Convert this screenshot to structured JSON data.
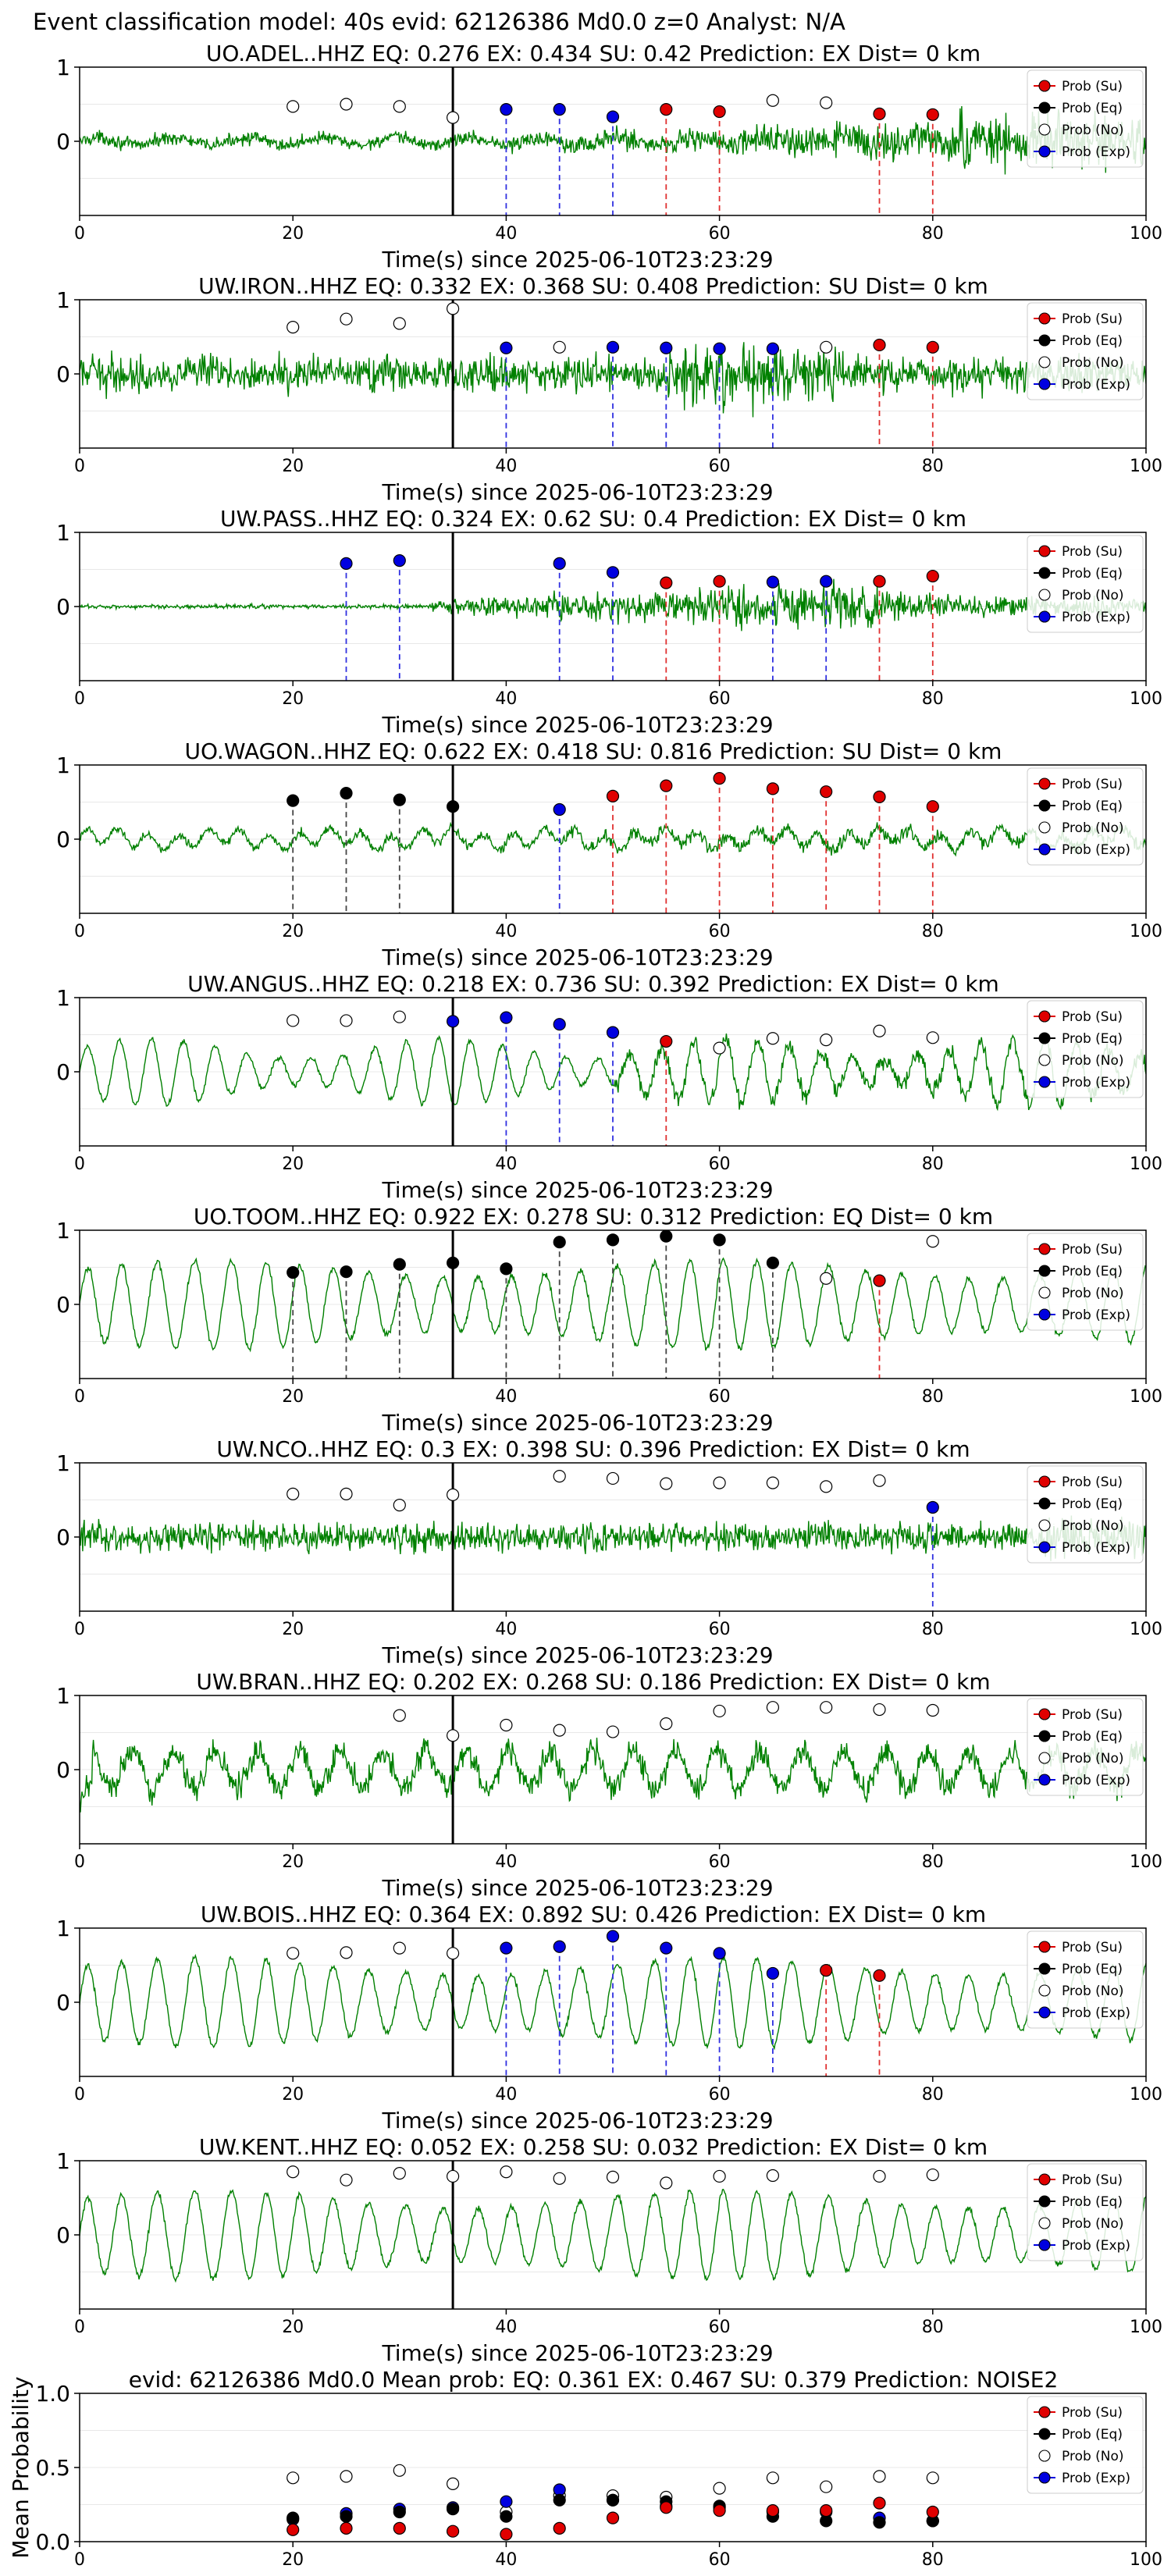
{
  "figure": {
    "suptitle": "Event classification model: 40s evid: 62126386 Md0.0 z=0 Analyst: N/A"
  },
  "legend": {
    "entries": [
      "Prob (Su)",
      "Prob (Eq)",
      "Prob (No)",
      "Prob (Exp)"
    ],
    "colors": [
      "#e00000",
      "#000000",
      "#ffffff",
      "#0000e0"
    ],
    "placement": "right"
  },
  "colors": {
    "trace": "#008000",
    "su": "#e00000",
    "eq": "#000000",
    "no": "#ffffff",
    "exp": "#0000e0",
    "su_line": "#e03030",
    "eq_line": "#444444",
    "exp_line": "#3030e0",
    "pick_line": "#000000"
  },
  "chart_data": [
    {
      "type": "line",
      "title": "UO.ADEL..HHZ   EQ: 0.276  EX: 0.434  SU: 0.42   Prediction: EX    Dist= 0 km",
      "xlabel": "Time(s) since 2025-06-10T23:23:29",
      "xlim": [
        0,
        100
      ],
      "ylim": [
        -1,
        1
      ],
      "xticks": [
        0,
        20,
        40,
        60,
        80,
        100
      ],
      "yticks": [
        1,
        0
      ],
      "pick_time": 35,
      "trace_style": "noise_growing",
      "points": [
        [
          20,
          0.47,
          "no"
        ],
        [
          25,
          0.5,
          "no"
        ],
        [
          30,
          0.47,
          "no"
        ],
        [
          35,
          0.32,
          "no"
        ],
        [
          40,
          0.43,
          "exp"
        ],
        [
          45,
          0.43,
          "exp"
        ],
        [
          50,
          0.33,
          "exp"
        ],
        [
          55,
          0.43,
          "su"
        ],
        [
          60,
          0.4,
          "su"
        ],
        [
          65,
          0.55,
          "no"
        ],
        [
          70,
          0.52,
          "no"
        ],
        [
          75,
          0.37,
          "su"
        ],
        [
          80,
          0.36,
          "su"
        ]
      ]
    },
    {
      "type": "line",
      "title": "UW.IRON..HHZ   EQ: 0.332  EX: 0.368  SU: 0.408   Prediction: SU    Dist= 0 km",
      "xlabel": "Time(s) since 2025-06-10T23:23:29",
      "xlim": [
        0,
        100
      ],
      "ylim": [
        -1,
        1
      ],
      "xticks": [
        0,
        20,
        40,
        60,
        80,
        100
      ],
      "yticks": [
        1,
        0
      ],
      "pick_time": 35,
      "trace_style": "noise_burst",
      "points": [
        [
          20,
          0.63,
          "no"
        ],
        [
          25,
          0.74,
          "no"
        ],
        [
          30,
          0.68,
          "no"
        ],
        [
          35,
          0.88,
          "no"
        ],
        [
          40,
          0.35,
          "exp"
        ],
        [
          45,
          0.36,
          "no"
        ],
        [
          50,
          0.36,
          "exp"
        ],
        [
          55,
          0.35,
          "exp"
        ],
        [
          60,
          0.34,
          "exp"
        ],
        [
          65,
          0.34,
          "exp"
        ],
        [
          70,
          0.36,
          "no"
        ],
        [
          75,
          0.39,
          "su"
        ],
        [
          80,
          0.36,
          "su"
        ]
      ]
    },
    {
      "type": "line",
      "title": "UW.PASS..HHZ   EQ: 0.324  EX: 0.62  SU: 0.4   Prediction: EX    Dist= 0 km",
      "xlabel": "Time(s) since 2025-06-10T23:23:29",
      "xlim": [
        0,
        100
      ],
      "ylim": [
        -1,
        1
      ],
      "xticks": [
        0,
        20,
        40,
        60,
        80,
        100
      ],
      "yticks": [
        1,
        0
      ],
      "pick_time": 35,
      "trace_style": "quiet_then_event",
      "points": [
        [
          25,
          0.58,
          "exp"
        ],
        [
          30,
          0.62,
          "exp"
        ],
        [
          45,
          0.58,
          "exp"
        ],
        [
          50,
          0.46,
          "exp"
        ],
        [
          55,
          0.32,
          "su"
        ],
        [
          60,
          0.34,
          "su"
        ],
        [
          65,
          0.33,
          "exp"
        ],
        [
          70,
          0.34,
          "exp"
        ],
        [
          75,
          0.34,
          "su"
        ],
        [
          80,
          0.41,
          "su"
        ]
      ]
    },
    {
      "type": "line",
      "title": "UO.WAGON..HHZ   EQ: 0.622  EX: 0.418  SU: 0.816   Prediction: SU    Dist= 0 km",
      "xlabel": "Time(s) since 2025-06-10T23:23:29",
      "xlim": [
        0,
        100
      ],
      "ylim": [
        -1,
        1
      ],
      "xticks": [
        0,
        20,
        40,
        60,
        80,
        100
      ],
      "yticks": [
        1,
        0
      ],
      "pick_time": 35,
      "trace_style": "low_freq_small",
      "points": [
        [
          20,
          0.52,
          "eq"
        ],
        [
          25,
          0.62,
          "eq"
        ],
        [
          30,
          0.53,
          "eq"
        ],
        [
          35,
          0.44,
          "eq"
        ],
        [
          45,
          0.4,
          "exp"
        ],
        [
          50,
          0.58,
          "su"
        ],
        [
          55,
          0.72,
          "su"
        ],
        [
          60,
          0.82,
          "su"
        ],
        [
          65,
          0.68,
          "su"
        ],
        [
          70,
          0.64,
          "su"
        ],
        [
          75,
          0.57,
          "su"
        ],
        [
          80,
          0.44,
          "su"
        ]
      ]
    },
    {
      "type": "line",
      "title": "UW.ANGUS..HHZ   EQ: 0.218  EX: 0.736  SU: 0.392   Prediction: EX    Dist= 0 km",
      "xlabel": "Time(s) since 2025-06-10T23:23:29",
      "xlim": [
        0,
        100
      ],
      "ylim": [
        -1,
        1
      ],
      "xticks": [
        0,
        20,
        40,
        60,
        80,
        100
      ],
      "yticks": [
        1,
        0
      ],
      "pick_time": 35,
      "trace_style": "oscillation",
      "points": [
        [
          20,
          0.69,
          "no"
        ],
        [
          25,
          0.69,
          "no"
        ],
        [
          30,
          0.74,
          "no"
        ],
        [
          35,
          0.68,
          "exp"
        ],
        [
          40,
          0.73,
          "exp"
        ],
        [
          45,
          0.64,
          "exp"
        ],
        [
          50,
          0.53,
          "exp"
        ],
        [
          55,
          0.41,
          "su"
        ],
        [
          60,
          0.32,
          "no"
        ],
        [
          65,
          0.45,
          "no"
        ],
        [
          70,
          0.43,
          "no"
        ],
        [
          75,
          0.55,
          "no"
        ],
        [
          80,
          0.46,
          "no"
        ]
      ]
    },
    {
      "type": "line",
      "title": "UO.TOOM..HHZ   EQ: 0.922  EX: 0.278  SU: 0.312   Prediction: EQ    Dist= 0 km",
      "xlabel": "Time(s) since 2025-06-10T23:23:29",
      "xlim": [
        0,
        100
      ],
      "ylim": [
        -1,
        1
      ],
      "xticks": [
        0,
        20,
        40,
        60,
        80,
        100
      ],
      "yticks": [
        1,
        0
      ],
      "pick_time": 35,
      "trace_style": "oscillation_big",
      "points": [
        [
          20,
          0.43,
          "eq"
        ],
        [
          25,
          0.44,
          "eq"
        ],
        [
          30,
          0.54,
          "eq"
        ],
        [
          35,
          0.56,
          "eq"
        ],
        [
          40,
          0.48,
          "eq"
        ],
        [
          45,
          0.84,
          "eq"
        ],
        [
          50,
          0.87,
          "eq"
        ],
        [
          55,
          0.92,
          "eq"
        ],
        [
          60,
          0.87,
          "eq"
        ],
        [
          65,
          0.56,
          "eq"
        ],
        [
          70,
          0.35,
          "no"
        ],
        [
          75,
          0.32,
          "su"
        ],
        [
          80,
          0.85,
          "no"
        ]
      ]
    },
    {
      "type": "line",
      "title": "UW.NCO..HHZ   EQ: 0.3  EX: 0.398  SU: 0.396   Prediction: EX    Dist= 0 km",
      "xlabel": "Time(s) since 2025-06-10T23:23:29",
      "xlim": [
        0,
        100
      ],
      "ylim": [
        -1,
        1
      ],
      "xticks": [
        0,
        20,
        40,
        60,
        80,
        100
      ],
      "yticks": [
        1,
        0
      ],
      "pick_time": 35,
      "trace_style": "noise",
      "points": [
        [
          20,
          0.58,
          "no"
        ],
        [
          25,
          0.58,
          "no"
        ],
        [
          30,
          0.43,
          "no"
        ],
        [
          35,
          0.57,
          "no"
        ],
        [
          45,
          0.82,
          "no"
        ],
        [
          50,
          0.79,
          "no"
        ],
        [
          55,
          0.72,
          "no"
        ],
        [
          60,
          0.73,
          "no"
        ],
        [
          65,
          0.73,
          "no"
        ],
        [
          70,
          0.68,
          "no"
        ],
        [
          75,
          0.76,
          "no"
        ],
        [
          80,
          0.4,
          "exp"
        ]
      ]
    },
    {
      "type": "line",
      "title": "UW.BRAN..HHZ   EQ: 0.202  EX: 0.268  SU: 0.186   Prediction: EX    Dist= 0 km",
      "xlabel": "Time(s) since 2025-06-10T23:23:29",
      "xlim": [
        0,
        100
      ],
      "ylim": [
        -1,
        1
      ],
      "xticks": [
        0,
        20,
        40,
        60,
        80,
        100
      ],
      "yticks": [
        1,
        0
      ],
      "pick_time": 35,
      "trace_style": "noisy_oscillation",
      "points": [
        [
          30,
          0.73,
          "no"
        ],
        [
          35,
          0.46,
          "no"
        ],
        [
          40,
          0.6,
          "no"
        ],
        [
          45,
          0.53,
          "no"
        ],
        [
          50,
          0.51,
          "no"
        ],
        [
          55,
          0.62,
          "no"
        ],
        [
          60,
          0.79,
          "no"
        ],
        [
          65,
          0.84,
          "no"
        ],
        [
          70,
          0.84,
          "no"
        ],
        [
          75,
          0.81,
          "no"
        ],
        [
          80,
          0.8,
          "no"
        ]
      ]
    },
    {
      "type": "line",
      "title": "UW.BOIS..HHZ   EQ: 0.364  EX: 0.892  SU: 0.426   Prediction: EX    Dist= 0 km",
      "xlabel": "Time(s) since 2025-06-10T23:23:29",
      "xlim": [
        0,
        100
      ],
      "ylim": [
        -1,
        1
      ],
      "xticks": [
        0,
        20,
        40,
        60,
        80,
        100
      ],
      "yticks": [
        1,
        0
      ],
      "pick_time": 35,
      "trace_style": "oscillation_big",
      "points": [
        [
          20,
          0.66,
          "no"
        ],
        [
          25,
          0.67,
          "no"
        ],
        [
          30,
          0.73,
          "no"
        ],
        [
          35,
          0.66,
          "no"
        ],
        [
          40,
          0.73,
          "exp"
        ],
        [
          45,
          0.75,
          "exp"
        ],
        [
          50,
          0.89,
          "exp"
        ],
        [
          55,
          0.73,
          "exp"
        ],
        [
          60,
          0.66,
          "exp"
        ],
        [
          65,
          0.39,
          "exp"
        ],
        [
          70,
          0.43,
          "su"
        ],
        [
          75,
          0.36,
          "su"
        ]
      ]
    },
    {
      "type": "line",
      "title": "UW.KENT..HHZ   EQ: 0.052  EX: 0.258  SU: 0.032   Prediction: EX    Dist= 0 km",
      "xlabel": "Time(s) since 2025-06-10T23:23:29",
      "xlim": [
        0,
        100
      ],
      "ylim": [
        -1,
        1
      ],
      "xticks": [
        0,
        20,
        40,
        60,
        80,
        100
      ],
      "yticks": [
        1,
        0
      ],
      "pick_time": 35,
      "trace_style": "oscillation_big",
      "points": [
        [
          20,
          0.85,
          "no"
        ],
        [
          25,
          0.74,
          "no"
        ],
        [
          30,
          0.83,
          "no"
        ],
        [
          35,
          0.79,
          "no"
        ],
        [
          40,
          0.85,
          "no"
        ],
        [
          45,
          0.76,
          "no"
        ],
        [
          50,
          0.78,
          "no"
        ],
        [
          55,
          0.7,
          "no"
        ],
        [
          60,
          0.79,
          "no"
        ],
        [
          65,
          0.8,
          "no"
        ],
        [
          75,
          0.79,
          "no"
        ],
        [
          80,
          0.81,
          "no"
        ]
      ]
    },
    {
      "type": "scatter",
      "title": "evid: 62126386  Md0.0   Mean prob:   EQ: 0.361  EX: 0.467  SU: 0.379   Prediction: NOISE2",
      "xlabel": "",
      "ylabel": "Mean Probability",
      "xlim": [
        0,
        100
      ],
      "ylim": [
        0,
        1
      ],
      "xticks": [
        0,
        20,
        40,
        60,
        80,
        100
      ],
      "yticks": [
        0.0,
        0.5,
        1.0
      ],
      "ytick_labels": [
        "0.0",
        "0.5",
        "1.0"
      ],
      "series": [
        {
          "name": "Prob (No)",
          "cls": "no",
          "x": [
            20,
            25,
            30,
            35,
            40,
            45,
            50,
            55,
            60,
            65,
            70,
            75,
            80
          ],
          "y": [
            0.43,
            0.44,
            0.48,
            0.39,
            0.2,
            0.31,
            0.31,
            0.3,
            0.36,
            0.43,
            0.37,
            0.44,
            0.43
          ]
        },
        {
          "name": "Prob (Exp)",
          "cls": "exp",
          "x": [
            20,
            25,
            30,
            35,
            40,
            45,
            50,
            55,
            60,
            65,
            70,
            75,
            80
          ],
          "y": [
            0.15,
            0.19,
            0.22,
            0.23,
            0.27,
            0.35,
            0.28,
            0.24,
            0.23,
            0.2,
            0.2,
            0.16,
            0.14
          ]
        },
        {
          "name": "Prob (Eq)",
          "cls": "eq",
          "x": [
            20,
            25,
            30,
            35,
            40,
            45,
            50,
            55,
            60,
            65,
            70,
            75,
            80
          ],
          "y": [
            0.16,
            0.17,
            0.2,
            0.22,
            0.17,
            0.28,
            0.28,
            0.27,
            0.24,
            0.17,
            0.14,
            0.13,
            0.14
          ]
        },
        {
          "name": "Prob (Su)",
          "cls": "su",
          "x": [
            20,
            25,
            30,
            35,
            40,
            45,
            50,
            55,
            60,
            65,
            70,
            75,
            80
          ],
          "y": [
            0.08,
            0.09,
            0.09,
            0.07,
            0.05,
            0.09,
            0.16,
            0.23,
            0.21,
            0.21,
            0.21,
            0.26,
            0.2
          ]
        }
      ]
    }
  ]
}
